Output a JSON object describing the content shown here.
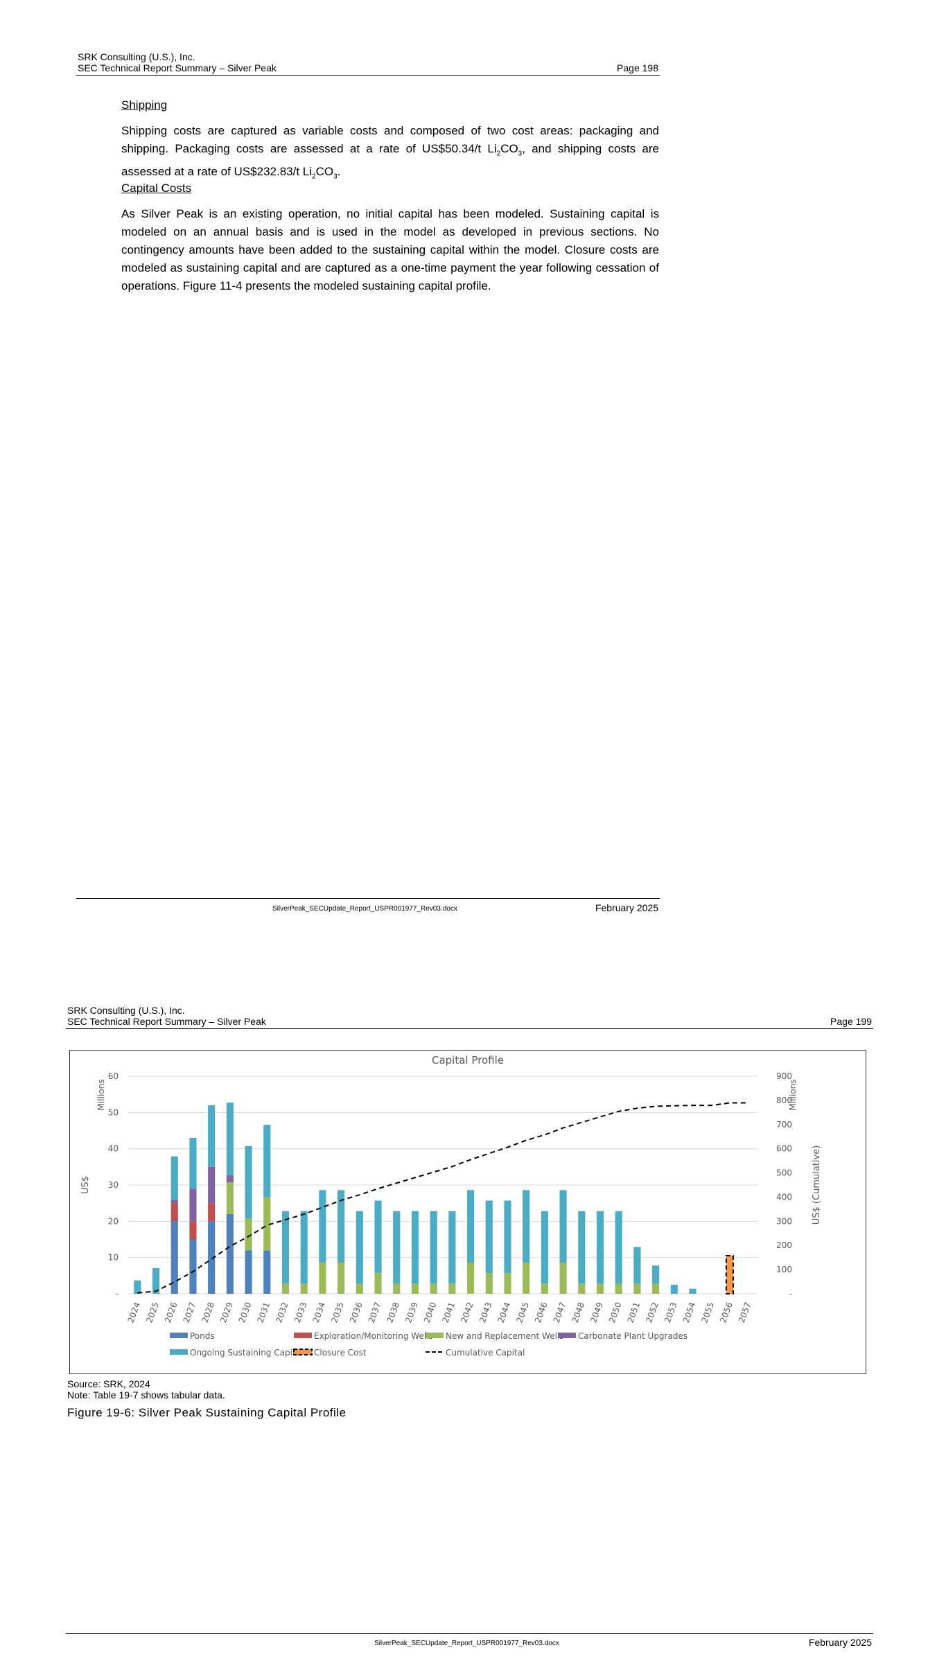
{
  "page1": {
    "header": {
      "company": "SRK Consulting (U.S.), Inc.",
      "report": "SEC Technical Report Summary – Silver Peak",
      "page": "Page 198"
    },
    "shipping_heading": "Shipping",
    "shipping_p1": "Shipping costs are captured as variable costs and composed of two cost areas: packaging and shipping. Packaging costs are assessed at a rate of US$50.34/t Li",
    "shipping_p2": "CO",
    "shipping_p3": ", and shipping costs are assessed at a rate of US$232.83/t Li",
    "shipping_p4": "CO",
    "shipping_p5": ".",
    "sub2": "2",
    "sub3": "3",
    "capital_heading": "Capital Costs",
    "capital_text": "As Silver Peak is an existing operation, no initial capital has been modeled. Sustaining capital is modeled on an annual basis and is used in the model as developed in previous sections. No contingency amounts have been added to the sustaining capital within the model. Closure costs are modeled as sustaining capital and are captured as a one-time payment the year following cessation of operations. Figure 11-4 presents the modeled sustaining capital profile.",
    "footer": {
      "file": "SilverPeak_SECUpdate_Report_USPR001977_Rev03.docx",
      "date": "February 2025"
    }
  },
  "page2": {
    "header": {
      "company": "SRK Consulting (U.S.), Inc.",
      "report": "SEC Technical Report Summary – Silver Peak",
      "page": "Page 199"
    },
    "source": "Source: SRK, 2024",
    "note": "Note: Table 19-7 shows tabular data.",
    "caption": "Figure 19-6: Silver Peak Sustaining Capital Profile",
    "footer": {
      "file": "SilverPeak_SECUpdate_Report_USPR001977_Rev03.docx",
      "date": "February 2025"
    }
  },
  "chart_data": {
    "type": "bar",
    "stacked": true,
    "title": "Capital Profile",
    "ylabel": "US$",
    "yunit": "Millions",
    "y2label": "US$ (Cumulative)",
    "y2unit": "Millions",
    "ylim": [
      0,
      60
    ],
    "y2lim": [
      0,
      900
    ],
    "yticks": [
      "-",
      "10",
      "20",
      "30",
      "40",
      "50",
      "60"
    ],
    "y2ticks": [
      "-",
      "100",
      "200",
      "300",
      "400",
      "500",
      "600",
      "700",
      "800",
      "900"
    ],
    "legend_position": "bottom",
    "categories": [
      "2024",
      "2025",
      "2026",
      "2027",
      "2028",
      "2029",
      "2030",
      "2031",
      "2032",
      "2033",
      "2034",
      "2035",
      "2036",
      "2037",
      "2038",
      "2039",
      "2040",
      "2041",
      "2042",
      "2043",
      "2044",
      "2045",
      "2046",
      "2047",
      "2048",
      "2049",
      "2050",
      "2051",
      "2052",
      "2053",
      "2054",
      "2055",
      "2056",
      "2057"
    ],
    "series": [
      {
        "name": "Ponds",
        "color": "#4f81bd",
        "values": [
          0,
          0,
          20,
          15,
          20,
          22,
          12,
          12,
          0,
          0,
          0,
          0,
          0,
          0,
          0,
          0,
          0,
          0,
          0,
          0,
          0,
          0,
          0,
          0,
          0,
          0,
          0,
          0,
          0,
          0,
          0,
          0,
          0,
          0
        ]
      },
      {
        "name": "Exploration/Monitoring Wells",
        "color": "#c0504d",
        "values": [
          0,
          0,
          5,
          5,
          5,
          0,
          0,
          0,
          0,
          0,
          0,
          0,
          0,
          0,
          0,
          0,
          0,
          0,
          0,
          0,
          0,
          0,
          0,
          0,
          0,
          0,
          0,
          0,
          0,
          0,
          0,
          0,
          0,
          0
        ]
      },
      {
        "name": "New and Replacement Wells",
        "color": "#9bbb59",
        "values": [
          0,
          0,
          0,
          0,
          0,
          8.7,
          8.7,
          14.6,
          2.8,
          2.8,
          8.6,
          8.6,
          2.8,
          5.7,
          2.8,
          2.8,
          2.8,
          2.8,
          8.6,
          5.7,
          5.7,
          8.6,
          2.8,
          8.6,
          2.8,
          2.8,
          2.8,
          2.8,
          2.8,
          0,
          0,
          0,
          0,
          0
        ]
      },
      {
        "name": "Carbonate Plant Upgrades",
        "color": "#8064a2",
        "values": [
          0,
          0,
          0.9,
          9,
          10,
          2,
          0,
          0,
          0,
          0,
          0,
          0,
          0,
          0,
          0,
          0,
          0,
          0,
          0,
          0,
          0,
          0,
          0,
          0,
          0,
          0,
          0,
          0,
          0,
          0,
          0,
          0,
          0,
          0
        ]
      },
      {
        "name": "Ongoing Sustaining Capital",
        "color": "#4bacc6",
        "values": [
          3.7,
          7.1,
          12,
          14,
          17,
          20,
          20,
          20,
          20,
          20,
          20,
          20,
          20,
          20,
          20,
          20,
          20,
          20,
          20,
          20,
          20,
          20,
          20,
          20,
          20,
          20,
          20,
          10.1,
          5,
          2.5,
          1.4,
          0,
          0,
          0
        ]
      },
      {
        "name": "Closure Cost",
        "color": "#f79646",
        "values": [
          0,
          0,
          0,
          0,
          0,
          0,
          0,
          0,
          0,
          0,
          0,
          0,
          0,
          0,
          0,
          0,
          0,
          0,
          0,
          0,
          0,
          0,
          0,
          0,
          0,
          0,
          0,
          0,
          0,
          0,
          0,
          0,
          10.5,
          0
        ]
      }
    ],
    "line_series": {
      "name": "Cumulative Capital",
      "axis": "secondary",
      "values": [
        3.7,
        10.8,
        48.7,
        91.7,
        143.7,
        196.4,
        237.1,
        283.7,
        306.5,
        329.3,
        357.9,
        386.5,
        409.3,
        435,
        457.8,
        480.6,
        503.4,
        526.2,
        554.8,
        580.5,
        606.2,
        634.8,
        657.6,
        686.2,
        709,
        731.8,
        754.6,
        767.5,
        775.3,
        777.8,
        779.2,
        779.2,
        789.7,
        789.7
      ]
    },
    "grid": true
  }
}
